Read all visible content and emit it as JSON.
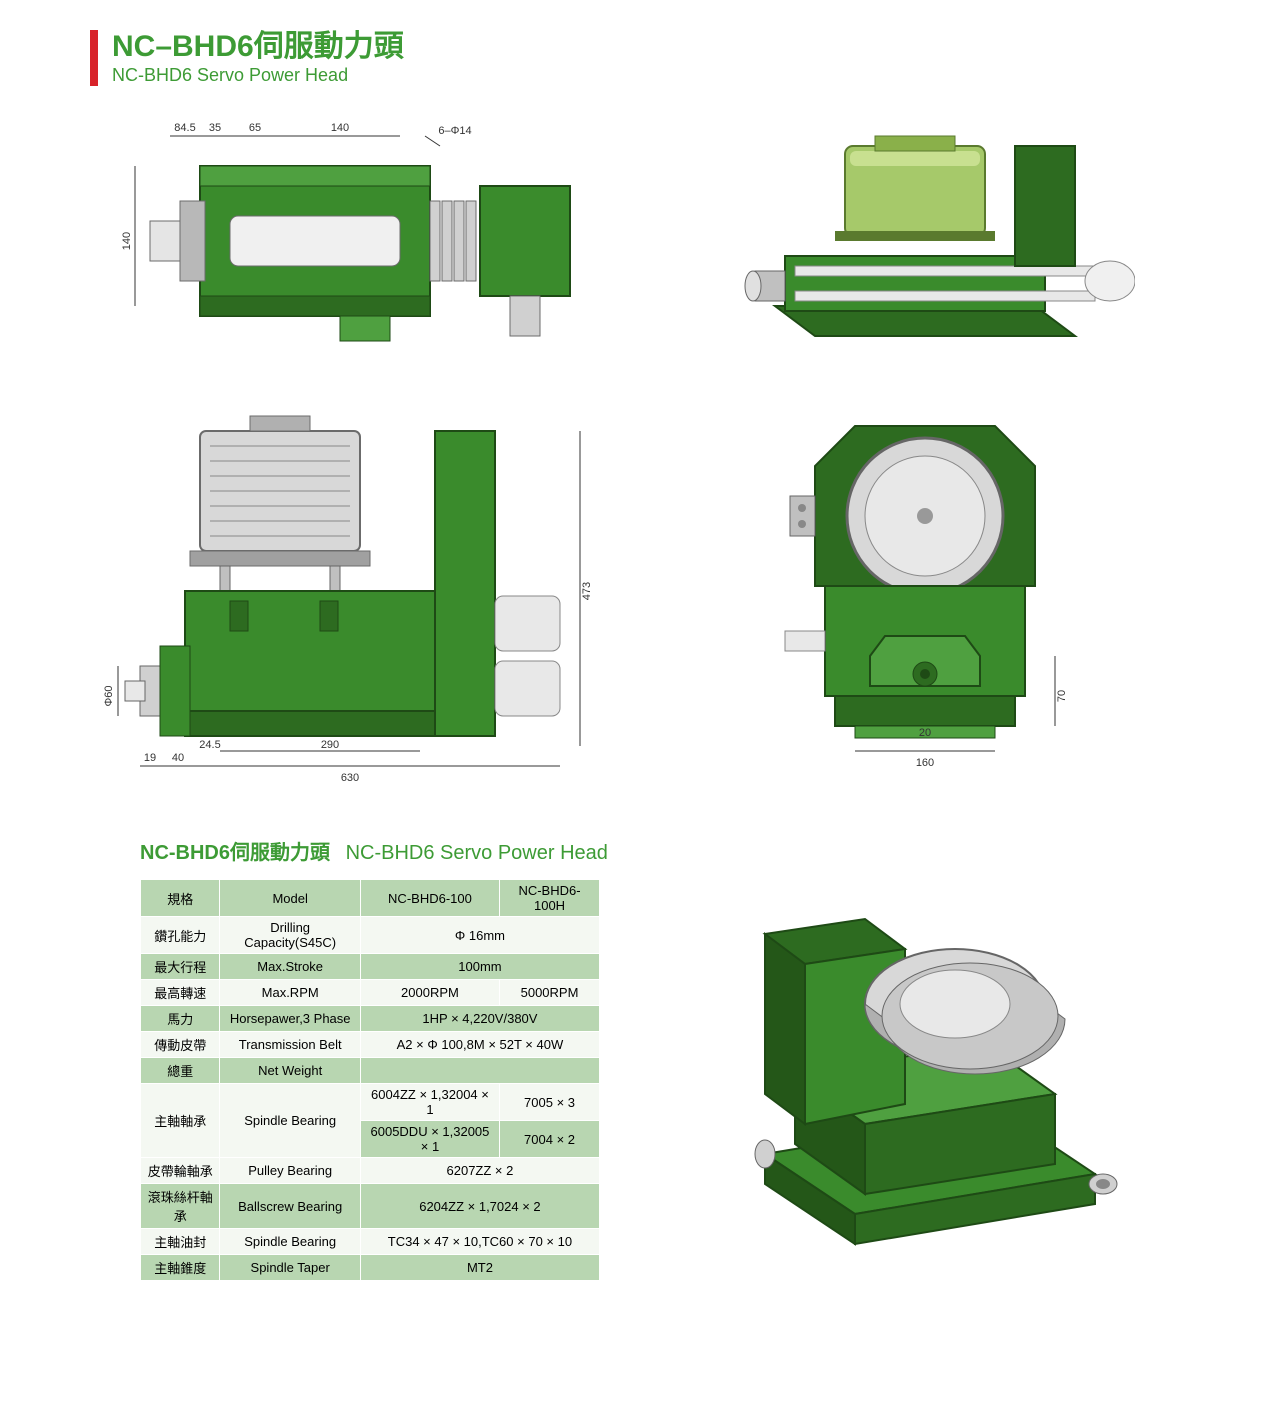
{
  "header": {
    "title_cn": "NC–BHD6伺服動力頭",
    "title_en": "NC-BHD6 Servo Power Head"
  },
  "colors": {
    "brand_green": "#3d9b35",
    "accent_red": "#d8232a",
    "machine_green": "#3a8b2c",
    "machine_green_dark": "#2d6b20",
    "machine_green_outline": "#1e4a15",
    "steel_light": "#e5e5e5",
    "steel_mid": "#b8b8b8",
    "steel_dark": "#6b6b6b",
    "row_dark": "#b8d6b1",
    "row_light": "#f4f8f2"
  },
  "top_view": {
    "dims": [
      "84.5",
      "35",
      "65",
      "140",
      "6–Φ14"
    ],
    "height_label": "140"
  },
  "side_view": {
    "width_label": "630",
    "partial_w": "290",
    "gap_w": "24.5",
    "small_w1": "19",
    "small_w2": "40",
    "dia_label": "Φ60",
    "height_label": "473"
  },
  "end_view": {
    "base_w": "160",
    "slot_w": "20",
    "side_h": "70"
  },
  "spec_heading": {
    "cn": "NC-BHD6伺服動力頭",
    "en": "NC-BHD6 Servo Power Head"
  },
  "spec_table": {
    "columns": [
      "規格",
      "Model",
      "NC-BHD6-100",
      "NC-BHD6-100H"
    ],
    "rows": [
      {
        "c1": "鑽孔能力",
        "c2": "Drilling Capacity(S45C)",
        "c3": "Φ 16mm",
        "span34": true
      },
      {
        "c1": "最大行程",
        "c2": "Max.Stroke",
        "c3": "100mm",
        "span34": true
      },
      {
        "c1": "最高轉速",
        "c2": "Max.RPM",
        "c3": "2000RPM",
        "c4": "5000RPM"
      },
      {
        "c1": "馬力",
        "c2": "Horsepawer,3 Phase",
        "c3": "1HP × 4,220V/380V",
        "span34": true
      },
      {
        "c1": "傳動皮帶",
        "c2": "Transmission Belt",
        "c3": "A2 × Φ 100,8M × 52T × 40W",
        "span34": true
      },
      {
        "c1": "總重",
        "c2": "Net Weight",
        "c3": "",
        "span34": true
      },
      {
        "c1": "主軸軸承",
        "c2": "Spindle Bearing",
        "c3": "6004ZZ × 1,32004 × 1",
        "c4": "7005 × 3",
        "rowspan": 2
      },
      {
        "sub": true,
        "c3": "6005DDU × 1,32005 × 1",
        "c4": "7004 × 2"
      },
      {
        "c1": "皮帶輪軸承",
        "c2": "Pulley Bearing",
        "c3": "6207ZZ × 2",
        "span34": true
      },
      {
        "c1": "滾珠絲杆軸承",
        "c2": "Ballscrew Bearing",
        "c3": "6204ZZ × 1,7024 × 2",
        "span34": true
      },
      {
        "c1": "主軸油封",
        "c2": "Spindle Bearing",
        "c3": "TC34 × 47 × 10,TC60 × 70 × 10",
        "span34": true
      },
      {
        "c1": "主軸錐度",
        "c2": "Spindle Taper",
        "c3": "MT2",
        "span34": true
      }
    ]
  }
}
